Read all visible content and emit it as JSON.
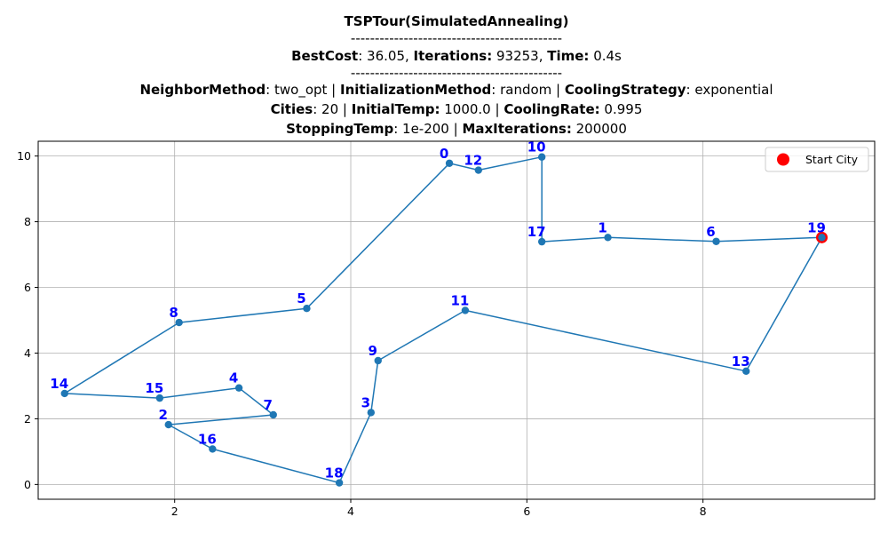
{
  "title_lines": [
    [
      {
        "t": "TSPTour(SimulatedAnnealing)",
        "b": true
      }
    ],
    [
      {
        "t": "--------------------------------------------",
        "b": false
      }
    ],
    [
      {
        "t": "BestCost",
        "b": true
      },
      {
        "t": ": 36.05, ",
        "b": false
      },
      {
        "t": "Iterations:",
        "b": true
      },
      {
        "t": " 93253, ",
        "b": false
      },
      {
        "t": "Time:",
        "b": true
      },
      {
        "t": " 0.4s",
        "b": false
      }
    ],
    [
      {
        "t": "--------------------------------------------",
        "b": false
      }
    ],
    [
      {
        "t": "NeighborMethod",
        "b": true
      },
      {
        "t": ": two_opt | ",
        "b": false
      },
      {
        "t": "InitializationMethod",
        "b": true
      },
      {
        "t": ": random | ",
        "b": false
      },
      {
        "t": "CoolingStrategy",
        "b": true
      },
      {
        "t": ": exponential",
        "b": false
      }
    ],
    [
      {
        "t": "Cities",
        "b": true
      },
      {
        "t": ": 20 | ",
        "b": false
      },
      {
        "t": "InitialTemp:",
        "b": true
      },
      {
        "t": " 1000.0 | ",
        "b": false
      },
      {
        "t": "CoolingRate:",
        "b": true
      },
      {
        "t": " 0.995",
        "b": false
      }
    ],
    [
      {
        "t": "StoppingTemp",
        "b": true
      },
      {
        "t": ": 1e-200 | ",
        "b": false
      },
      {
        "t": "MaxIterations:",
        "b": true
      },
      {
        "t": " 200000",
        "b": false
      }
    ]
  ],
  "chart_data": {
    "type": "line",
    "xlim": [
      0.45,
      9.95
    ],
    "ylim": [
      -0.45,
      10.45
    ],
    "xticks": [
      2,
      4,
      6,
      8
    ],
    "yticks": [
      0,
      2,
      4,
      6,
      8,
      10
    ],
    "grid": true,
    "line_color": "#1f77b4",
    "label_color": "#0000ff",
    "start_color": "#ff0000",
    "cities": [
      {
        "id": "0",
        "x": 5.12,
        "y": 9.78
      },
      {
        "id": "1",
        "x": 6.92,
        "y": 7.52
      },
      {
        "id": "2",
        "x": 1.93,
        "y": 1.82
      },
      {
        "id": "3",
        "x": 4.23,
        "y": 2.19
      },
      {
        "id": "4",
        "x": 2.73,
        "y": 2.94
      },
      {
        "id": "5",
        "x": 3.5,
        "y": 5.36
      },
      {
        "id": "6",
        "x": 8.15,
        "y": 7.4
      },
      {
        "id": "7",
        "x": 3.12,
        "y": 2.12
      },
      {
        "id": "8",
        "x": 2.05,
        "y": 4.93
      },
      {
        "id": "9",
        "x": 4.31,
        "y": 3.77
      },
      {
        "id": "10",
        "x": 6.17,
        "y": 9.97
      },
      {
        "id": "11",
        "x": 5.3,
        "y": 5.3
      },
      {
        "id": "12",
        "x": 5.45,
        "y": 9.57
      },
      {
        "id": "13",
        "x": 8.49,
        "y": 3.45
      },
      {
        "id": "14",
        "x": 0.75,
        "y": 2.77
      },
      {
        "id": "15",
        "x": 1.83,
        "y": 2.63
      },
      {
        "id": "16",
        "x": 2.43,
        "y": 1.08
      },
      {
        "id": "17",
        "x": 6.17,
        "y": 7.39
      },
      {
        "id": "18",
        "x": 3.87,
        "y": 0.05
      },
      {
        "id": "19",
        "x": 9.35,
        "y": 7.52
      }
    ],
    "tour": [
      "19",
      "6",
      "1",
      "17",
      "10",
      "12",
      "0",
      "5",
      "8",
      "14",
      "15",
      "4",
      "7",
      "2",
      "16",
      "18",
      "3",
      "9",
      "11",
      "13",
      "19"
    ],
    "start_city": "19",
    "legend": {
      "label": "Start City",
      "position": "top-right"
    }
  }
}
